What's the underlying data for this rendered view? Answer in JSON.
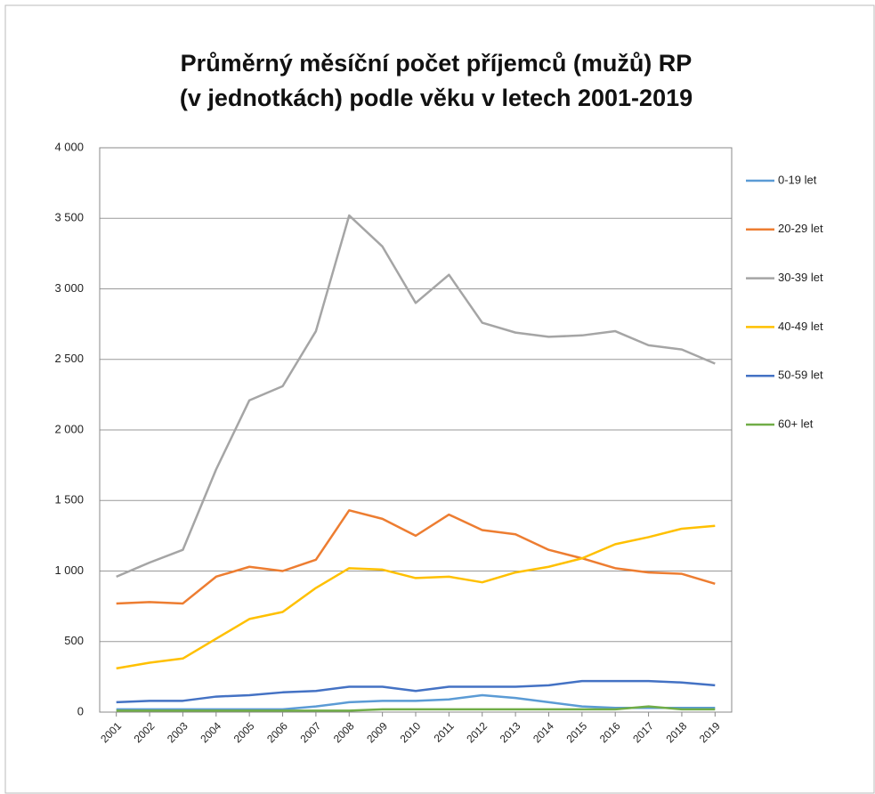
{
  "chart_data": {
    "type": "line",
    "title": [
      "Průměrný měsíční počet příjemců (mužů) RP",
      "(v jednotkách) podle věku v letech 2001-2019"
    ],
    "categories": [
      "2001",
      "2002",
      "2003",
      "2004",
      "2005",
      "2006",
      "2007",
      "2008",
      "2009",
      "2010",
      "2011",
      "2012",
      "2013",
      "2014",
      "2015",
      "2016",
      "2017",
      "2018",
      "2019"
    ],
    "series": [
      {
        "name": "0-19 let",
        "color": "#5b9bd5",
        "values": [
          20,
          20,
          20,
          20,
          20,
          20,
          40,
          70,
          80,
          80,
          90,
          120,
          100,
          70,
          40,
          30,
          30,
          30,
          30
        ]
      },
      {
        "name": "20-29 let",
        "color": "#ed7d31",
        "values": [
          770,
          780,
          770,
          960,
          1030,
          1000,
          1080,
          1430,
          1370,
          1250,
          1400,
          1290,
          1260,
          1150,
          1090,
          1020,
          990,
          980,
          910
        ]
      },
      {
        "name": "30-39 let",
        "color": "#a5a5a5",
        "values": [
          960,
          1060,
          1150,
          1720,
          2210,
          2310,
          2700,
          3520,
          3300,
          2900,
          3100,
          2760,
          2690,
          2660,
          2670,
          2700,
          2600,
          2570,
          2470
        ]
      },
      {
        "name": "40-49 let",
        "color": "#ffc000",
        "values": [
          310,
          350,
          380,
          520,
          660,
          710,
          880,
          1020,
          1010,
          950,
          960,
          920,
          990,
          1030,
          1090,
          1190,
          1240,
          1300,
          1320
        ]
      },
      {
        "name": "50-59 let",
        "color": "#4472c4",
        "values": [
          70,
          80,
          80,
          110,
          120,
          140,
          150,
          180,
          180,
          150,
          180,
          180,
          180,
          190,
          220,
          220,
          220,
          210,
          190
        ]
      },
      {
        "name": "60+ let",
        "color": "#70ad47",
        "values": [
          10,
          10,
          10,
          10,
          10,
          10,
          10,
          10,
          20,
          20,
          20,
          20,
          20,
          20,
          20,
          20,
          40,
          20,
          20
        ]
      }
    ],
    "ylim": [
      0,
      4000
    ],
    "yticks": [
      0,
      500,
      {
        "value": 1000,
        "label": "1 000"
      },
      {
        "value": 1500,
        "label": "1 500"
      },
      {
        "value": 2000,
        "label": "2 000"
      },
      {
        "value": 2500,
        "label": "2 500"
      },
      {
        "value": 3000,
        "label": "3 000"
      },
      {
        "value": 3500,
        "label": "3 500"
      },
      {
        "value": 4000,
        "label": "4 000"
      }
    ],
    "grid": true,
    "legend": "right"
  }
}
